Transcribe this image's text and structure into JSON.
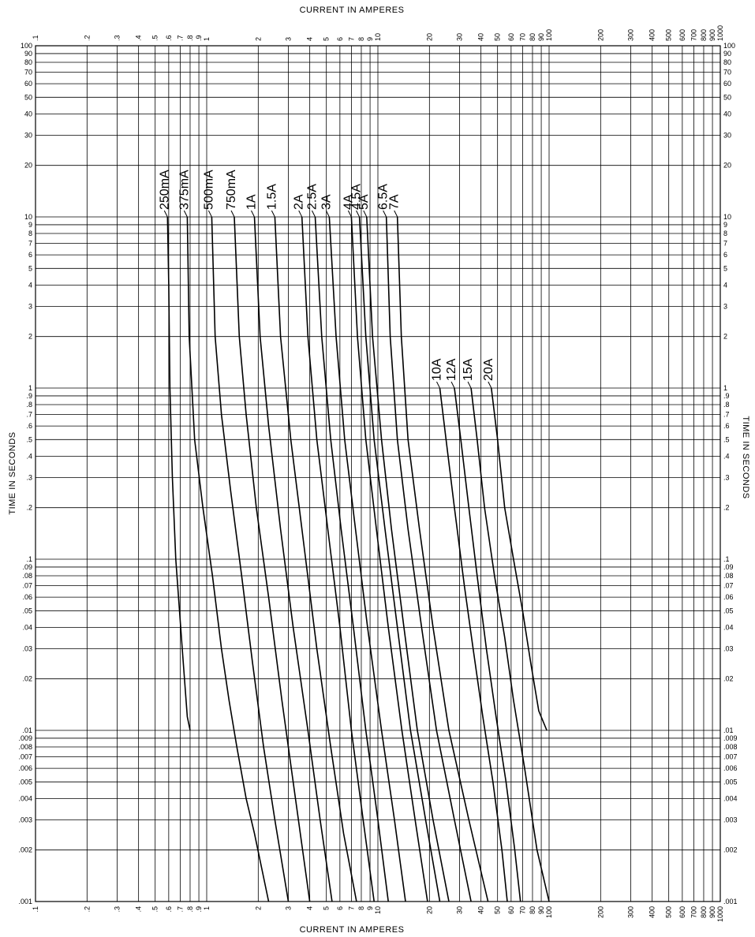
{
  "chart_data": {
    "type": "line",
    "title": "",
    "xlabel": "CURRENT    IN    AMPERES",
    "ylabel": "TIME    IN    SECONDS",
    "x_scale": "log",
    "y_scale": "log",
    "xlim": [
      0.1,
      1000
    ],
    "ylim": [
      0.001,
      100
    ],
    "grid": true,
    "x_tick_labels": [
      {
        "v": 0.1,
        "t": ".1"
      },
      {
        "v": 0.2,
        "t": ".2"
      },
      {
        "v": 0.3,
        "t": ".3"
      },
      {
        "v": 0.4,
        "t": ".4"
      },
      {
        "v": 0.5,
        "t": ".5"
      },
      {
        "v": 0.6,
        "t": ".6"
      },
      {
        "v": 0.7,
        "t": ".7"
      },
      {
        "v": 0.8,
        "t": ".8"
      },
      {
        "v": 0.9,
        "t": ".9"
      },
      {
        "v": 1,
        "t": "1"
      },
      {
        "v": 2,
        "t": "2"
      },
      {
        "v": 3,
        "t": "3"
      },
      {
        "v": 4,
        "t": "4"
      },
      {
        "v": 5,
        "t": "5"
      },
      {
        "v": 6,
        "t": "6"
      },
      {
        "v": 7,
        "t": "7"
      },
      {
        "v": 8,
        "t": "8"
      },
      {
        "v": 9,
        "t": "9"
      },
      {
        "v": 10,
        "t": "10"
      },
      {
        "v": 20,
        "t": "20"
      },
      {
        "v": 30,
        "t": "30"
      },
      {
        "v": 40,
        "t": "40"
      },
      {
        "v": 50,
        "t": "50"
      },
      {
        "v": 60,
        "t": "60"
      },
      {
        "v": 70,
        "t": "70"
      },
      {
        "v": 80,
        "t": "80"
      },
      {
        "v": 90,
        "t": "90"
      },
      {
        "v": 100,
        "t": "100"
      },
      {
        "v": 200,
        "t": "200"
      },
      {
        "v": 300,
        "t": "300"
      },
      {
        "v": 400,
        "t": "400"
      },
      {
        "v": 500,
        "t": "500"
      },
      {
        "v": 600,
        "t": "600"
      },
      {
        "v": 700,
        "t": "700"
      },
      {
        "v": 800,
        "t": "800"
      },
      {
        "v": 900,
        "t": "900"
      },
      {
        "v": 1000,
        "t": "1000"
      }
    ],
    "y_tick_labels": [
      {
        "v": 100,
        "t": "100"
      },
      {
        "v": 90,
        "t": "90"
      },
      {
        "v": 80,
        "t": "80"
      },
      {
        "v": 70,
        "t": "70"
      },
      {
        "v": 60,
        "t": "60"
      },
      {
        "v": 50,
        "t": "50"
      },
      {
        "v": 40,
        "t": "40"
      },
      {
        "v": 30,
        "t": "30"
      },
      {
        "v": 20,
        "t": "20"
      },
      {
        "v": 10,
        "t": "10"
      },
      {
        "v": 9,
        "t": "9"
      },
      {
        "v": 8,
        "t": "8"
      },
      {
        "v": 7,
        "t": "7"
      },
      {
        "v": 6,
        "t": "6"
      },
      {
        "v": 5,
        "t": "5"
      },
      {
        "v": 4,
        "t": "4"
      },
      {
        "v": 3,
        "t": "3"
      },
      {
        "v": 2,
        "t": "2"
      },
      {
        "v": 1,
        "t": "1"
      },
      {
        "v": 0.9,
        "t": ".9"
      },
      {
        "v": 0.8,
        "t": ".8"
      },
      {
        "v": 0.7,
        "t": ".7"
      },
      {
        "v": 0.6,
        "t": ".6"
      },
      {
        "v": 0.5,
        "t": ".5"
      },
      {
        "v": 0.4,
        "t": ".4"
      },
      {
        "v": 0.3,
        "t": ".3"
      },
      {
        "v": 0.2,
        "t": ".2"
      },
      {
        "v": 0.1,
        "t": ".1"
      },
      {
        "v": 0.09,
        "t": ".09"
      },
      {
        "v": 0.08,
        "t": ".08"
      },
      {
        "v": 0.07,
        "t": ".07"
      },
      {
        "v": 0.06,
        "t": ".06"
      },
      {
        "v": 0.05,
        "t": ".05"
      },
      {
        "v": 0.04,
        "t": ".04"
      },
      {
        "v": 0.03,
        "t": ".03"
      },
      {
        "v": 0.02,
        "t": ".02"
      },
      {
        "v": 0.01,
        "t": ".01"
      },
      {
        "v": 0.009,
        "t": ".009"
      },
      {
        "v": 0.008,
        "t": ".008"
      },
      {
        "v": 0.007,
        "t": ".007"
      },
      {
        "v": 0.006,
        "t": ".006"
      },
      {
        "v": 0.005,
        "t": ".005"
      },
      {
        "v": 0.004,
        "t": ".004"
      },
      {
        "v": 0.003,
        "t": ".003"
      },
      {
        "v": 0.002,
        "t": ".002"
      },
      {
        "v": 0.001,
        "t": ".001"
      }
    ],
    "series": [
      {
        "name": "250mA",
        "points": [
          [
            0.59,
            10
          ],
          [
            0.6,
            4
          ],
          [
            0.61,
            1
          ],
          [
            0.63,
            0.3
          ],
          [
            0.66,
            0.1
          ],
          [
            0.72,
            0.03
          ],
          [
            0.77,
            0.012
          ],
          [
            0.8,
            0.01
          ]
        ]
      },
      {
        "name": "375mA",
        "points": [
          [
            0.77,
            10
          ],
          [
            0.79,
            2
          ],
          [
            0.85,
            0.5
          ],
          [
            0.95,
            0.2
          ],
          [
            1.08,
            0.08
          ],
          [
            1.22,
            0.03
          ],
          [
            1.35,
            0.015
          ],
          [
            1.5,
            0.008
          ],
          [
            1.7,
            0.004
          ],
          [
            1.9,
            0.0025
          ],
          [
            2.3,
            0.001
          ]
        ]
      },
      {
        "name": "500mA",
        "points": [
          [
            1.07,
            10
          ],
          [
            1.12,
            2
          ],
          [
            1.22,
            0.7
          ],
          [
            1.38,
            0.25
          ],
          [
            1.6,
            0.08
          ],
          [
            1.85,
            0.025
          ],
          [
            2.15,
            0.008
          ],
          [
            2.5,
            0.003
          ],
          [
            3.0,
            0.001
          ]
        ]
      },
      {
        "name": "750mA",
        "points": [
          [
            1.45,
            10
          ],
          [
            1.55,
            2
          ],
          [
            1.7,
            0.7
          ],
          [
            1.95,
            0.2
          ],
          [
            2.3,
            0.06
          ],
          [
            2.75,
            0.015
          ],
          [
            3.3,
            0.004
          ],
          [
            4.0,
            0.001
          ]
        ]
      },
      {
        "name": "1A",
        "points": [
          [
            1.9,
            10
          ],
          [
            2.05,
            2
          ],
          [
            2.3,
            0.6
          ],
          [
            2.7,
            0.15
          ],
          [
            3.2,
            0.04
          ],
          [
            3.9,
            0.01
          ],
          [
            4.6,
            0.003
          ],
          [
            5.4,
            0.001
          ]
        ]
      },
      {
        "name": "1.5A",
        "points": [
          [
            2.5,
            10
          ],
          [
            2.7,
            2
          ],
          [
            3.1,
            0.5
          ],
          [
            3.7,
            0.12
          ],
          [
            4.4,
            0.03
          ],
          [
            5.3,
            0.008
          ],
          [
            6.3,
            0.0025
          ],
          [
            7.5,
            0.001
          ]
        ]
      },
      {
        "name": "2A",
        "points": [
          [
            3.6,
            10
          ],
          [
            3.9,
            2
          ],
          [
            4.4,
            0.5
          ],
          [
            5.1,
            0.15
          ],
          [
            6.0,
            0.04
          ],
          [
            7.0,
            0.01
          ],
          [
            8.2,
            0.003
          ],
          [
            9.5,
            0.001
          ]
        ]
      },
      {
        "name": "2.5A",
        "points": [
          [
            4.3,
            10
          ],
          [
            4.7,
            2
          ],
          [
            5.3,
            0.5
          ],
          [
            6.1,
            0.15
          ],
          [
            7.2,
            0.04
          ],
          [
            8.5,
            0.01
          ],
          [
            10.0,
            0.003
          ],
          [
            11.5,
            0.001
          ]
        ]
      },
      {
        "name": "3A",
        "points": [
          [
            5.2,
            10
          ],
          [
            5.7,
            2
          ],
          [
            6.4,
            0.5
          ],
          [
            7.4,
            0.15
          ],
          [
            8.7,
            0.04
          ],
          [
            10.5,
            0.01
          ],
          [
            12.5,
            0.003
          ],
          [
            14.5,
            0.001
          ]
        ]
      },
      {
        "name": "4A",
        "points": [
          [
            7.0,
            10
          ],
          [
            7.6,
            2
          ],
          [
            8.5,
            0.5
          ],
          [
            9.8,
            0.15
          ],
          [
            11.5,
            0.04
          ],
          [
            13.8,
            0.01
          ],
          [
            16.5,
            0.003
          ],
          [
            19.5,
            0.001
          ]
        ]
      },
      {
        "name": "4.5A",
        "points": [
          [
            7.8,
            10
          ],
          [
            8.5,
            2
          ],
          [
            9.5,
            0.5
          ],
          [
            11.0,
            0.15
          ],
          [
            13.0,
            0.04
          ],
          [
            15.5,
            0.01
          ],
          [
            19.0,
            0.003
          ],
          [
            23.0,
            0.001
          ]
        ]
      },
      {
        "name": "5A",
        "points": [
          [
            8.6,
            10
          ],
          [
            9.3,
            2
          ],
          [
            10.5,
            0.5
          ],
          [
            12.0,
            0.15
          ],
          [
            14.2,
            0.04
          ],
          [
            17.0,
            0.01
          ],
          [
            21.0,
            0.003
          ],
          [
            26.0,
            0.001
          ]
        ]
      },
      {
        "name": "6.5A",
        "points": [
          [
            11.2,
            10
          ],
          [
            11.8,
            2
          ],
          [
            13.0,
            0.5
          ],
          [
            15.0,
            0.15
          ],
          [
            18.0,
            0.04
          ],
          [
            22.0,
            0.01
          ],
          [
            28.0,
            0.003
          ],
          [
            35.0,
            0.001
          ]
        ]
      },
      {
        "name": "7A",
        "points": [
          [
            13.0,
            10
          ],
          [
            13.7,
            2
          ],
          [
            15.0,
            0.5
          ],
          [
            17.5,
            0.15
          ],
          [
            21.0,
            0.04
          ],
          [
            26.0,
            0.01
          ],
          [
            34.0,
            0.003
          ],
          [
            44.0,
            0.001
          ]
        ]
      },
      {
        "name": "10A",
        "points": [
          [
            23.0,
            1
          ],
          [
            25.0,
            0.5
          ],
          [
            28.0,
            0.2
          ],
          [
            32.0,
            0.07
          ],
          [
            36.0,
            0.03
          ],
          [
            41.0,
            0.012
          ],
          [
            47.0,
            0.005
          ],
          [
            53.0,
            0.002
          ],
          [
            57.0,
            0.001
          ]
        ]
      },
      {
        "name": "12A",
        "points": [
          [
            28.0,
            1
          ],
          [
            30.5,
            0.5
          ],
          [
            34.0,
            0.2
          ],
          [
            38.0,
            0.08
          ],
          [
            43.0,
            0.03
          ],
          [
            49.0,
            0.012
          ],
          [
            56.0,
            0.005
          ],
          [
            63.0,
            0.002
          ],
          [
            68.0,
            0.001
          ]
        ]
      },
      {
        "name": "15A",
        "points": [
          [
            35.0,
            1
          ],
          [
            38.0,
            0.5
          ],
          [
            42.0,
            0.2
          ],
          [
            48.0,
            0.08
          ],
          [
            55.0,
            0.035
          ],
          [
            62.0,
            0.015
          ],
          [
            72.0,
            0.006
          ],
          [
            85.0,
            0.002
          ],
          [
            100.0,
            0.001
          ]
        ]
      },
      {
        "name": "20A",
        "points": [
          [
            46.0,
            1
          ],
          [
            50.0,
            0.5
          ],
          [
            55.0,
            0.2
          ],
          [
            62.0,
            0.1
          ],
          [
            70.0,
            0.05
          ],
          [
            78.0,
            0.025
          ],
          [
            87.0,
            0.013
          ],
          [
            97.0,
            0.01
          ]
        ]
      }
    ]
  }
}
